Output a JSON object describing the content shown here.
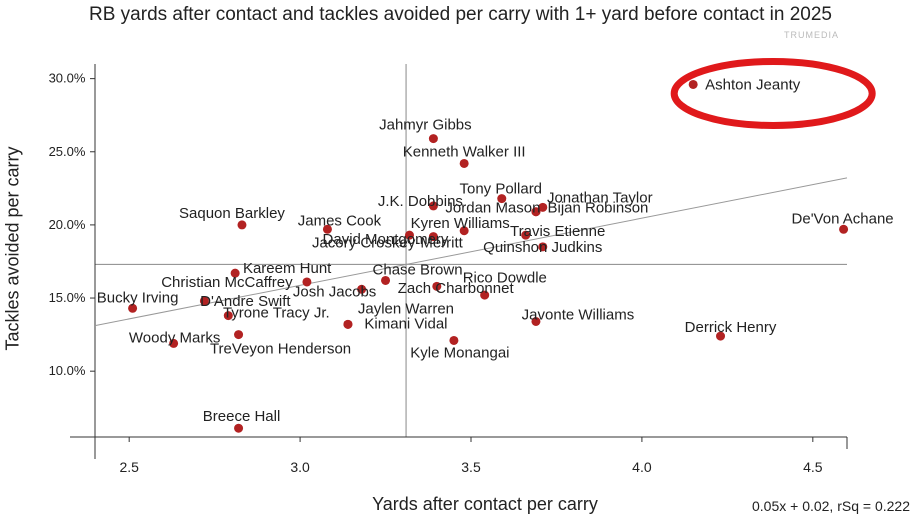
{
  "watermark": "TRUMEDIA",
  "regression_label": "0.05x + 0.02, rSq = 0.222",
  "chart_data": {
    "type": "scatter",
    "title": "RB yards after contact and tackles avoided per carry with 1+ yard before contact in 2025",
    "xlabel": "Yards after contact per carry",
    "ylabel": "Tackles avoided per carry",
    "xlim": [
      2.4,
      4.6
    ],
    "ylim": [
      5.5,
      31.0
    ],
    "x_ticks": [
      2.5,
      3.0,
      3.5,
      4.0,
      4.5
    ],
    "x_tick_labels": [
      "2.5",
      "3.0",
      "3.5",
      "4.0",
      "4.5"
    ],
    "y_ticks": [
      10,
      15,
      20,
      25,
      30
    ],
    "y_tick_labels": [
      "10.0%",
      "15.0%",
      "20.0%",
      "25.0%",
      "30.0%"
    ],
    "reference_lines": {
      "x": 3.31,
      "y": 17.3
    },
    "trend_line": {
      "slope": 4.59,
      "intercept": 2.1
    },
    "highlight": "Ashton Jeanty",
    "colors": {
      "point": "#b22222",
      "highlight_ring": "#e0191b",
      "trend": "#999999",
      "reference": "#888888"
    },
    "points": [
      {
        "name": "Ashton Jeanty",
        "x": 4.15,
        "y": 29.6
      },
      {
        "name": "Jahmyr Gibbs",
        "x": 3.39,
        "y": 25.9
      },
      {
        "name": "Kenneth Walker III",
        "x": 3.48,
        "y": 24.2
      },
      {
        "name": "Tony Pollard",
        "x": 3.59,
        "y": 21.8
      },
      {
        "name": "Jonathan Taylor",
        "x": 3.71,
        "y": 21.2
      },
      {
        "name": "J.K. Dobbins",
        "x": 3.39,
        "y": 21.3
      },
      {
        "name": "Jordan Mason",
        "x": 3.69,
        "y": 20.9
      },
      {
        "name": "Bijan Robinson",
        "x": 3.69,
        "y": 20.9
      },
      {
        "name": "De'Von Achane",
        "x": 4.59,
        "y": 19.7
      },
      {
        "name": "Saquon Barkley",
        "x": 2.83,
        "y": 20.0
      },
      {
        "name": "James Cook",
        "x": 3.08,
        "y": 19.7
      },
      {
        "name": "Kyren Williams",
        "x": 3.48,
        "y": 19.6
      },
      {
        "name": "Travis Etienne",
        "x": 3.66,
        "y": 19.3
      },
      {
        "name": "David Montgomery",
        "x": 3.32,
        "y": 19.3
      },
      {
        "name": "Jacory Croskey-Merritt",
        "x": 3.39,
        "y": 19.2
      },
      {
        "name": "Quinshon Judkins",
        "x": 3.71,
        "y": 18.5
      },
      {
        "name": "Kareem Hunt",
        "x": 2.81,
        "y": 16.7
      },
      {
        "name": "Christian McCaffrey",
        "x": 3.02,
        "y": 16.1
      },
      {
        "name": "Chase Brown",
        "x": 3.25,
        "y": 16.2
      },
      {
        "name": "Rico Dowdle",
        "x": 3.4,
        "y": 15.8
      },
      {
        "name": "Zach Charbonnet",
        "x": 3.54,
        "y": 15.2
      },
      {
        "name": "Josh Jacobs",
        "x": 3.18,
        "y": 15.6
      },
      {
        "name": "D'Andre Swift",
        "x": 2.72,
        "y": 14.8
      },
      {
        "name": "Bucky Irving",
        "x": 2.51,
        "y": 14.3
      },
      {
        "name": "Tyrone Tracy Jr.",
        "x": 2.79,
        "y": 13.8
      },
      {
        "name": "Jaylen Warren",
        "x": 3.14,
        "y": 13.2
      },
      {
        "name": "Kimani Vidal",
        "x": 3.14,
        "y": 13.2
      },
      {
        "name": "Javonte Williams",
        "x": 3.69,
        "y": 13.4
      },
      {
        "name": "Derrick Henry",
        "x": 4.23,
        "y": 12.4
      },
      {
        "name": "Woody Marks",
        "x": 2.63,
        "y": 11.9
      },
      {
        "name": "TreVeyon Henderson",
        "x": 2.82,
        "y": 12.5
      },
      {
        "name": "Kyle Monangai",
        "x": 3.45,
        "y": 12.1
      },
      {
        "name": "Breece Hall",
        "x": 2.82,
        "y": 6.1
      }
    ]
  }
}
